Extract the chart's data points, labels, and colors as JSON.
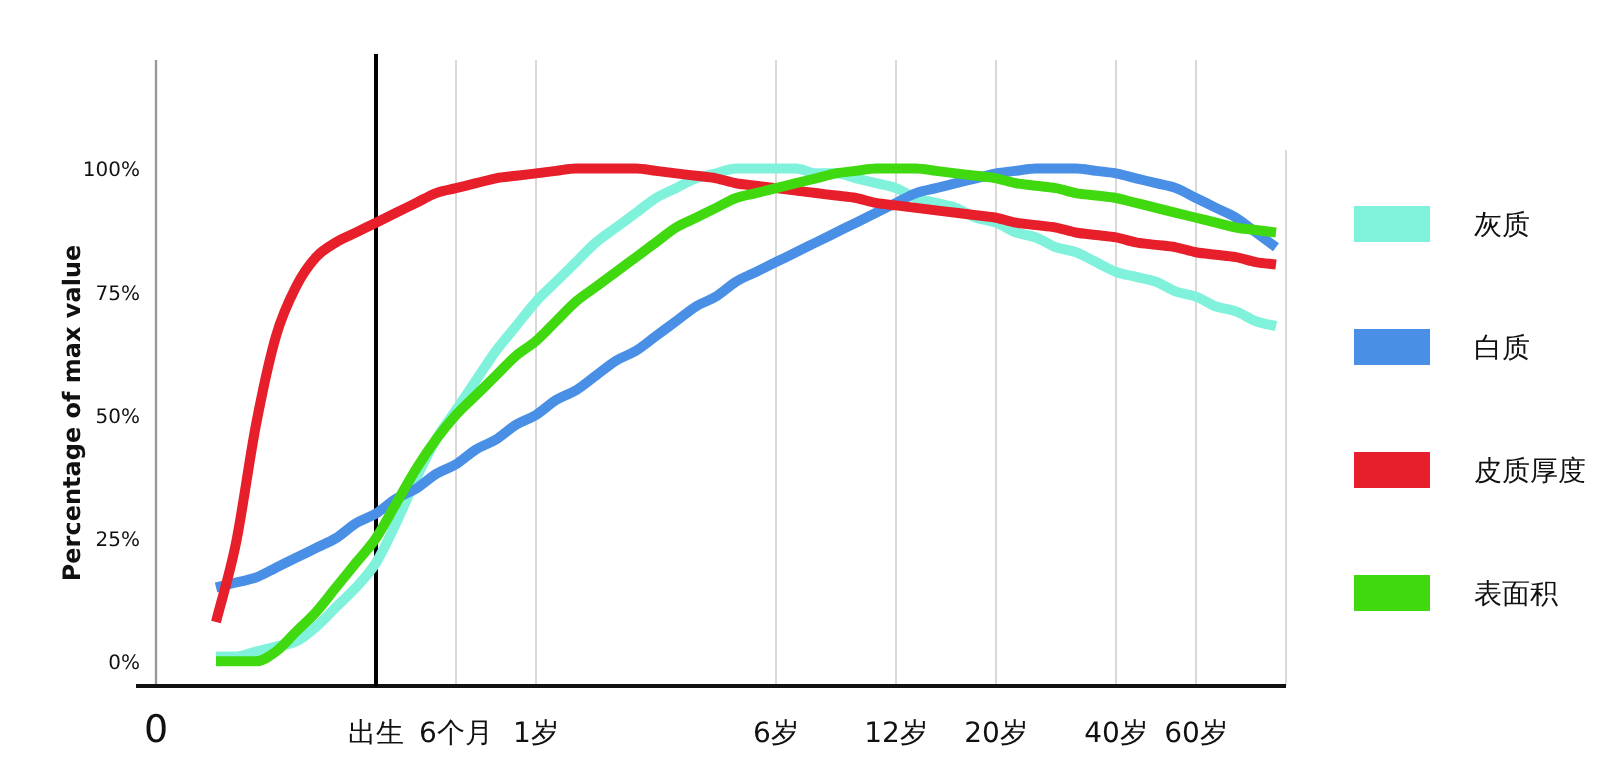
{
  "chart_data": {
    "type": "line",
    "ylabel": "Percentage of max value",
    "ylim": [
      -5,
      122
    ],
    "categories": [
      "0",
      null,
      null,
      null,
      null,
      null,
      null,
      null,
      null,
      null,
      null,
      "出生",
      null,
      null,
      null,
      "6个月",
      null,
      null,
      null,
      "1岁",
      null,
      null,
      null,
      null,
      null,
      null,
      null,
      null,
      null,
      null,
      null,
      "6岁",
      null,
      null,
      null,
      null,
      null,
      "12岁",
      null,
      null,
      null,
      null,
      "20岁",
      null,
      null,
      null,
      null,
      null,
      "40岁",
      null,
      null,
      null,
      "60岁",
      null,
      null,
      null,
      null
    ],
    "yticks": [
      {
        "value": 0,
        "label": "0%"
      },
      {
        "value": 25,
        "label": "25%"
      },
      {
        "value": 50,
        "label": "50%"
      },
      {
        "value": 75,
        "label": "75%"
      },
      {
        "value": 100,
        "label": "100%"
      }
    ],
    "grid": "x",
    "legend": "right",
    "line_style": "solid",
    "marker": "none",
    "ref_lines": [
      {
        "axis": "x",
        "value": "出生",
        "color": "#000000"
      }
    ],
    "series": [
      {
        "name": "灰质",
        "color": "#80f2dc",
        "values": [
          null,
          null,
          null,
          1,
          1,
          2,
          3,
          4,
          7,
          11,
          15,
          20,
          28,
          37,
          45,
          51,
          57,
          63,
          68,
          73,
          77,
          81,
          85,
          88,
          91,
          94,
          96,
          98,
          99,
          100,
          100,
          100,
          100,
          99,
          99,
          98,
          97,
          96,
          94,
          93,
          92,
          90,
          89,
          87,
          86,
          84,
          83,
          81,
          79,
          78,
          77,
          75,
          74,
          72,
          71,
          69,
          68
        ]
      },
      {
        "name": "白质",
        "color": "#4a8fe6",
        "values": [
          null,
          null,
          null,
          15,
          16,
          17,
          19,
          21,
          23,
          25,
          28,
          30,
          33,
          35,
          38,
          40,
          43,
          45,
          48,
          50,
          53,
          55,
          58,
          61,
          63,
          66,
          69,
          72,
          74,
          77,
          79,
          81,
          83,
          85,
          87,
          89,
          91,
          93,
          95,
          96,
          97,
          98,
          99,
          99.5,
          100,
          100,
          100,
          99.5,
          99,
          98,
          97,
          96,
          94,
          92,
          90,
          87,
          84
        ]
      },
      {
        "name": "皮质厚度",
        "color": "#e61f2b",
        "values": [
          null,
          null,
          null,
          8,
          24,
          48,
          66,
          76,
          82,
          85,
          87,
          89,
          91,
          93,
          95,
          96,
          97,
          98,
          98.5,
          99,
          99.5,
          100,
          100,
          100,
          100,
          99.5,
          99,
          98.5,
          98,
          97,
          96.5,
          96,
          95.5,
          95,
          94.5,
          94,
          93,
          92.5,
          92,
          91.5,
          91,
          90.5,
          90,
          89,
          88.5,
          88,
          87,
          86.5,
          86,
          85,
          84.5,
          84,
          83,
          82.5,
          82,
          81,
          80.5
        ]
      },
      {
        "name": "表面积",
        "color": "#40d90f",
        "values": [
          null,
          null,
          null,
          0,
          0,
          0,
          2,
          6,
          10,
          15,
          20,
          25,
          32,
          39,
          45,
          50,
          54,
          58,
          62,
          65,
          69,
          73,
          76,
          79,
          82,
          85,
          88,
          90,
          92,
          94,
          95,
          96,
          97,
          98,
          99,
          99.5,
          100,
          100,
          100,
          99.5,
          99,
          98.5,
          98,
          97,
          96.5,
          96,
          95,
          94.5,
          94,
          93,
          92,
          91,
          90,
          89,
          88,
          87.5,
          87
        ]
      }
    ]
  }
}
